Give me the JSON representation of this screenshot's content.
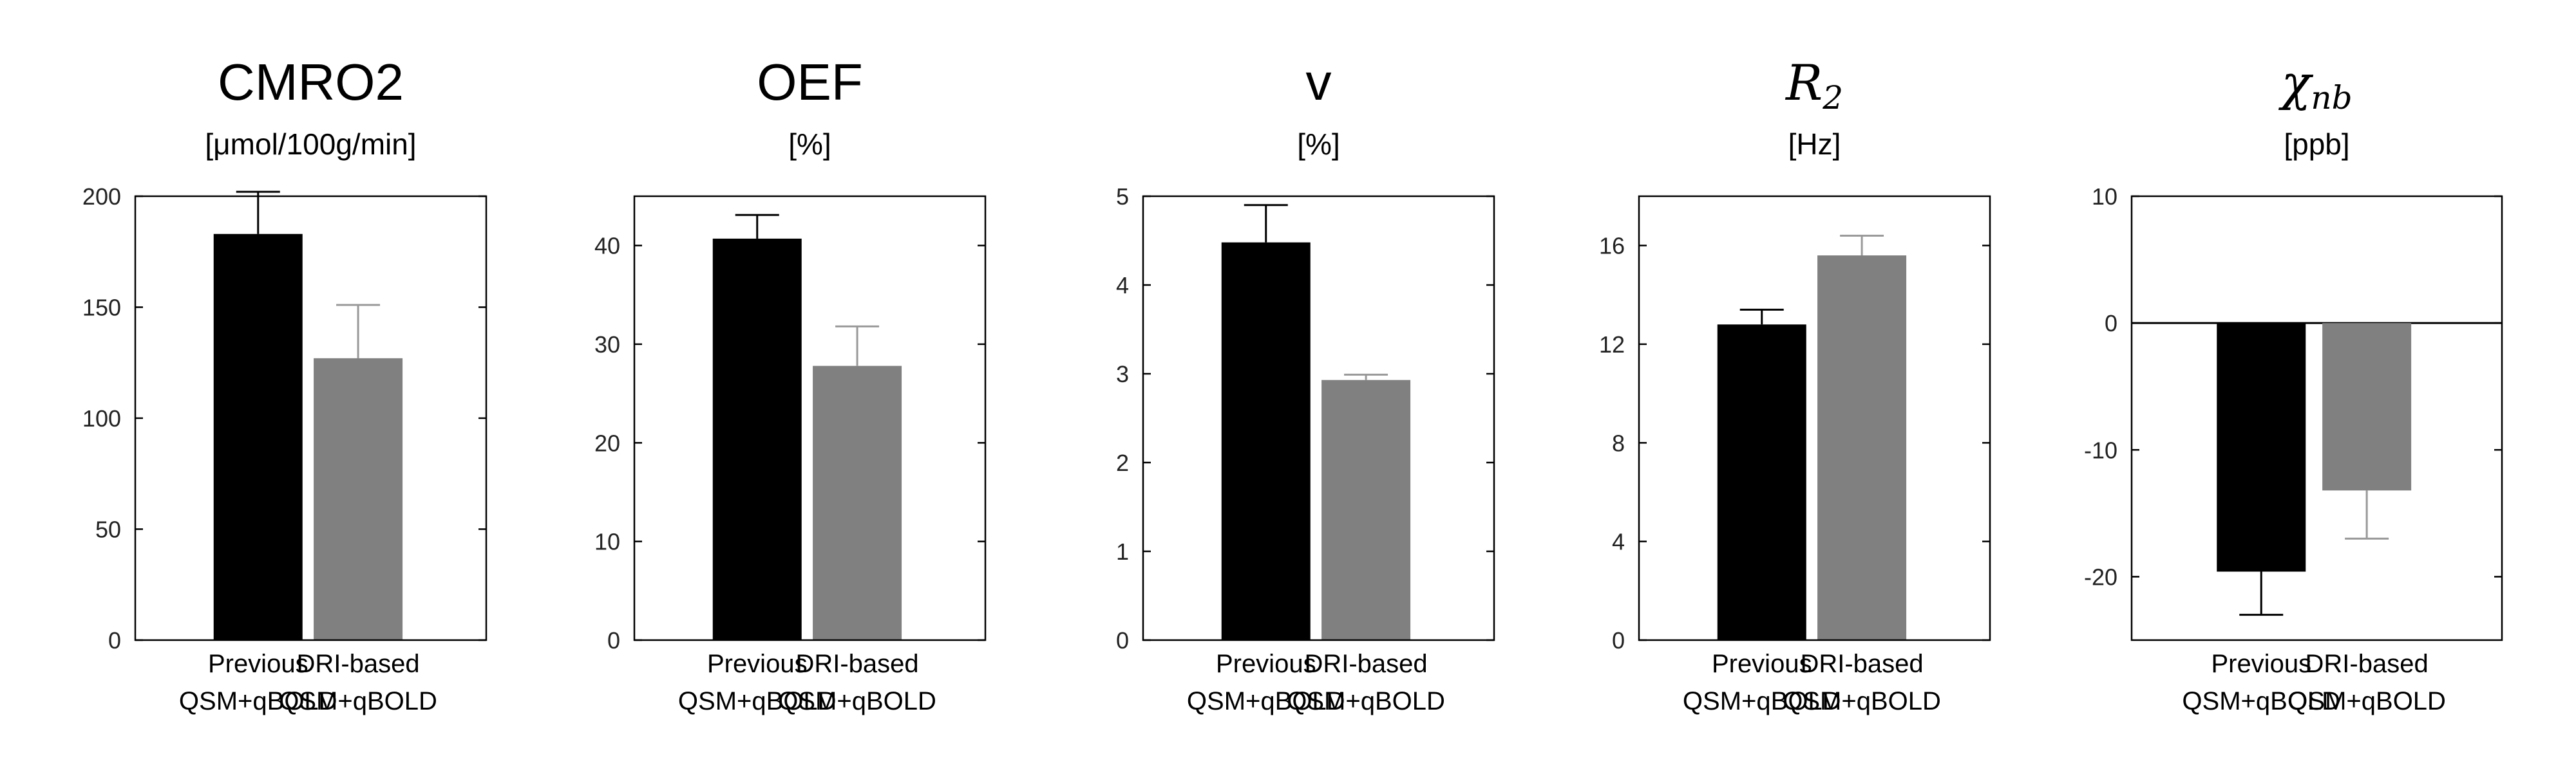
{
  "chart_data": [
    {
      "type": "bar",
      "title": "CMRO2",
      "title_sub": "",
      "unit": "[μmol/100g/min]",
      "categories": [
        [
          "Previous",
          "QSM+qBOLD"
        ],
        [
          "DRI-based",
          "QSM+qBOLD"
        ]
      ],
      "values": [
        183,
        127
      ],
      "errors": [
        19,
        24
      ],
      "colors": [
        "#000000",
        "#808080"
      ],
      "error_colors": [
        "#000000",
        "#999999"
      ],
      "ylim": [
        0,
        200
      ],
      "yticks": [
        0,
        50,
        100,
        150,
        200
      ],
      "zero_line": false
    },
    {
      "type": "bar",
      "title": "OEF",
      "title_sub": "",
      "unit": "[%]",
      "categories": [
        [
          "Previous",
          "QSM+qBOLD"
        ],
        [
          "DRI-based",
          "QSM+qBOLD"
        ]
      ],
      "values": [
        40.7,
        27.8
      ],
      "errors": [
        2.4,
        4
      ],
      "colors": [
        "#000000",
        "#808080"
      ],
      "error_colors": [
        "#000000",
        "#999999"
      ],
      "ylim": [
        0,
        45
      ],
      "yticks": [
        0,
        10,
        20,
        30,
        40
      ],
      "zero_line": false
    },
    {
      "type": "bar",
      "title": "v",
      "title_sub": "",
      "unit": "[%]",
      "categories": [
        [
          "Previous",
          "QSM+qBOLD"
        ],
        [
          "DRI-based",
          "QSM+qBOLD"
        ]
      ],
      "values": [
        4.48,
        2.93
      ],
      "errors": [
        0.42,
        0.06
      ],
      "colors": [
        "#000000",
        "#808080"
      ],
      "error_colors": [
        "#000000",
        "#999999"
      ],
      "ylim": [
        0,
        5
      ],
      "yticks": [
        0,
        1,
        2,
        3,
        4,
        5
      ],
      "zero_line": false
    },
    {
      "type": "bar",
      "title": "R",
      "title_sub": "2",
      "unit": "[Hz]",
      "categories": [
        [
          "Previous",
          "QSM+qBOLD"
        ],
        [
          "DRI-based",
          "QSM+qBOLD"
        ]
      ],
      "values": [
        12.8,
        15.6
      ],
      "errors": [
        0.6,
        0.8
      ],
      "colors": [
        "#000000",
        "#808080"
      ],
      "error_colors": [
        "#000000",
        "#999999"
      ],
      "ylim": [
        0,
        18
      ],
      "yticks": [
        0,
        4,
        8,
        12,
        16
      ],
      "zero_line": false
    },
    {
      "type": "bar",
      "title": "χ",
      "title_sub": "nb",
      "unit": "[ppb]",
      "categories": [
        [
          "Previous",
          "QSM+qBOLD"
        ],
        [
          "DRI-based",
          "QSM+qBOLD"
        ]
      ],
      "values": [
        -19.6,
        -13.2
      ],
      "errors": [
        3.4,
        3.8
      ],
      "colors": [
        "#000000",
        "#808080"
      ],
      "error_colors": [
        "#000000",
        "#999999"
      ],
      "ylim": [
        -25,
        10
      ],
      "yticks": [
        -20,
        -10,
        0,
        10
      ],
      "zero_line": true
    }
  ]
}
